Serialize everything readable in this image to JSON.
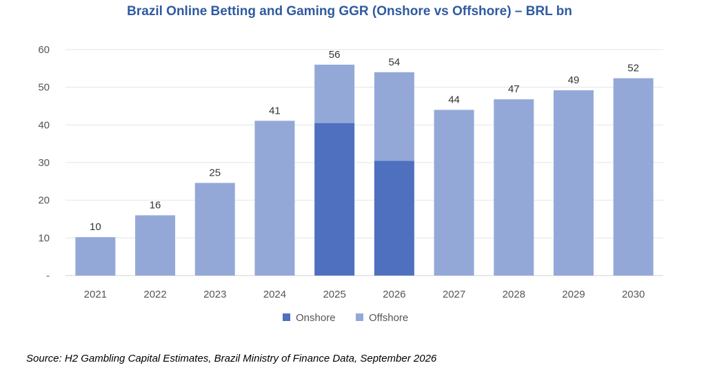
{
  "chart_data": {
    "type": "bar",
    "stacked": true,
    "title": "Brazil Online Betting and Gaming GGR (Onshore vs Offshore) – BRL bn",
    "xlabel": "",
    "ylabel": "",
    "categories": [
      "2021",
      "2022",
      "2023",
      "2024",
      "2025",
      "2026",
      "2027",
      "2028",
      "2029",
      "2030"
    ],
    "series": [
      {
        "name": "Onshore",
        "values": [
          0,
          0,
          0,
          0,
          40.5,
          30.5,
          0,
          0,
          0,
          0
        ]
      },
      {
        "name": "Offshore",
        "values": [
          10.2,
          16.0,
          24.6,
          41.1,
          15.5,
          23.5,
          44.0,
          46.8,
          49.2,
          52.4
        ]
      }
    ],
    "totals_labels": [
      "10",
      "16",
      "25",
      "41",
      "56",
      "54",
      "44",
      "47",
      "49",
      "52"
    ],
    "ylim": [
      0,
      60
    ],
    "yticks": [
      0,
      10,
      20,
      30,
      40,
      50,
      60
    ],
    "ytick_labels": [
      "-",
      "10",
      "20",
      "30",
      "40",
      "50",
      "60"
    ],
    "grid": true,
    "legend_position": "bottom",
    "colors": {
      "Onshore": "#4e70bf",
      "Offshore": "#94a8d8"
    },
    "source": "Source: H2 Gambling Capital Estimates, Brazil Ministry of Finance Data, September 2026"
  }
}
